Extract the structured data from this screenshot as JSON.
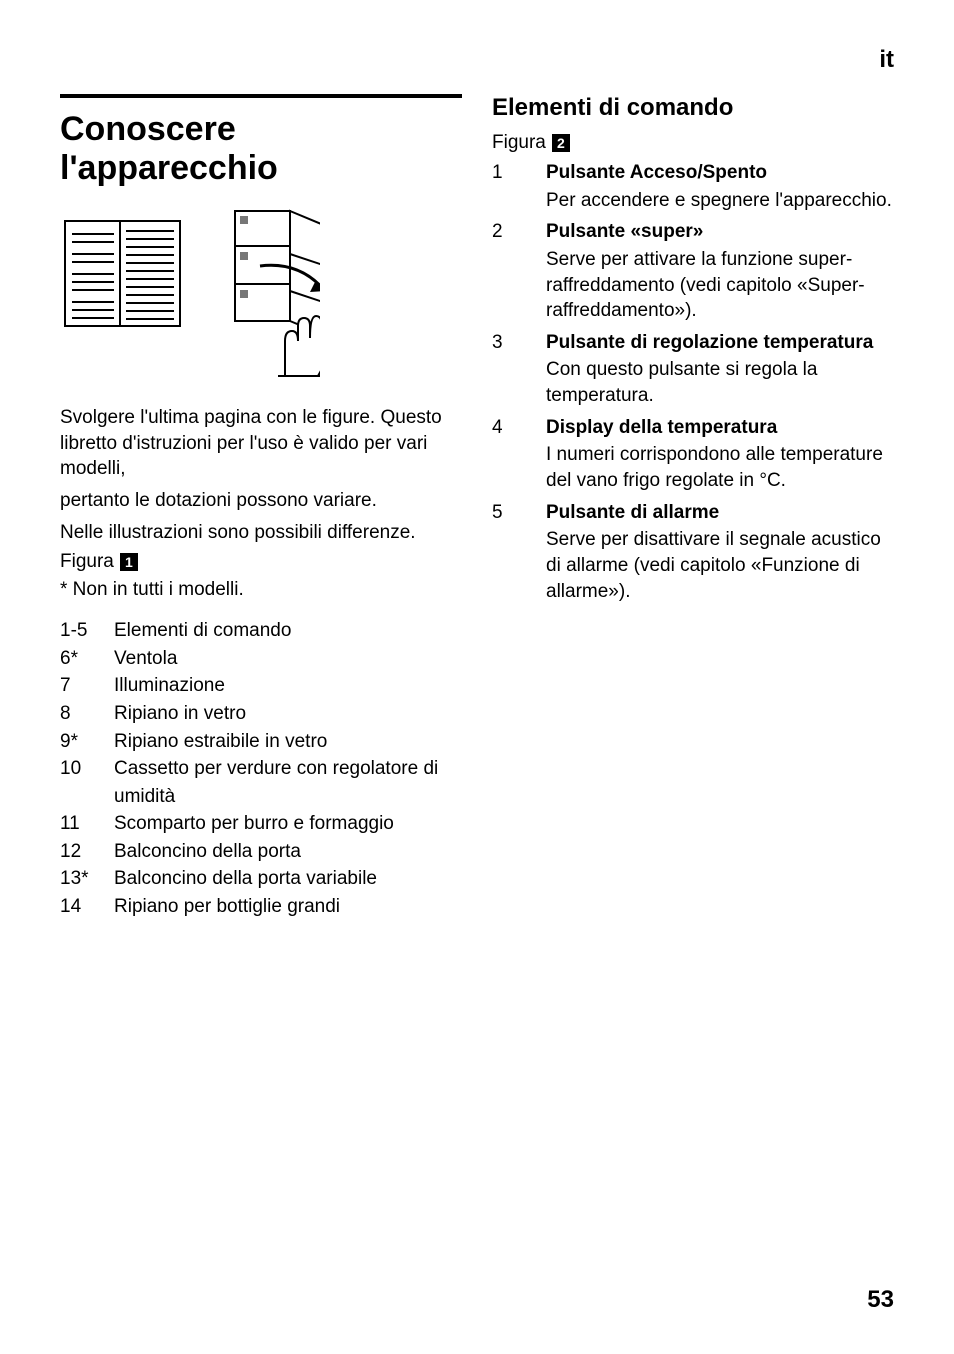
{
  "lang_label": "it",
  "page_number": "53",
  "left": {
    "heading": "Conoscere l'apparecchio",
    "figure": {
      "alt": "open-manual-booklet-icon"
    },
    "para1": "Svolgere l'ultima pagina con le figure. Questo libretto d'istruzioni per l'uso è valido per vari modelli,",
    "para2": "pertanto le dotazioni possono variare.",
    "para3": "Nelle illustrazioni sono possibili differenze.",
    "figura_label": "Figura",
    "figura_num": "1",
    "footnote": "* Non in tutti i modelli.",
    "list": [
      {
        "num": "1-5",
        "label": "Elementi di comando"
      },
      {
        "num": "6*",
        "label": "Ventola"
      },
      {
        "num": "7",
        "label": "Illuminazione"
      },
      {
        "num": "8",
        "label": "Ripiano in vetro"
      },
      {
        "num": "9*",
        "label": "Ripiano estraibile in vetro"
      },
      {
        "num": "10",
        "label": "Cassetto per verdure con regolatore di umidità"
      },
      {
        "num": "11",
        "label": "Scomparto per burro e formaggio"
      },
      {
        "num": "12",
        "label": "Balconcino della porta"
      },
      {
        "num": "13*",
        "label": "Balconcino della porta variabile"
      },
      {
        "num": "14",
        "label": "Ripiano per bottiglie grandi"
      }
    ]
  },
  "right": {
    "heading": "Elementi di comando",
    "figura_label": "Figura",
    "figura_num": "2",
    "list": [
      {
        "num": "1",
        "title": "Pulsante Acceso/Spento",
        "desc": "Per accendere e spegnere l'apparecchio."
      },
      {
        "num": "2",
        "title": "Pulsante «super»",
        "desc": "Serve per attivare la funzione super-raffreddamento (vedi capitolo «Super-raffreddamento»)."
      },
      {
        "num": "3",
        "title": "Pulsante di regolazione temperatura",
        "desc": "Con questo pulsante si regola la temperatura."
      },
      {
        "num": "4",
        "title": "Display della temperatura",
        "desc": "I numeri corrispondono alle temperature del vano frigo regolate in °C."
      },
      {
        "num": "5",
        "title": "Pulsante di allarme",
        "desc": "Serve per disattivare il segnale acustico di allarme (vedi capitolo «Funzione di allarme»)."
      }
    ]
  }
}
